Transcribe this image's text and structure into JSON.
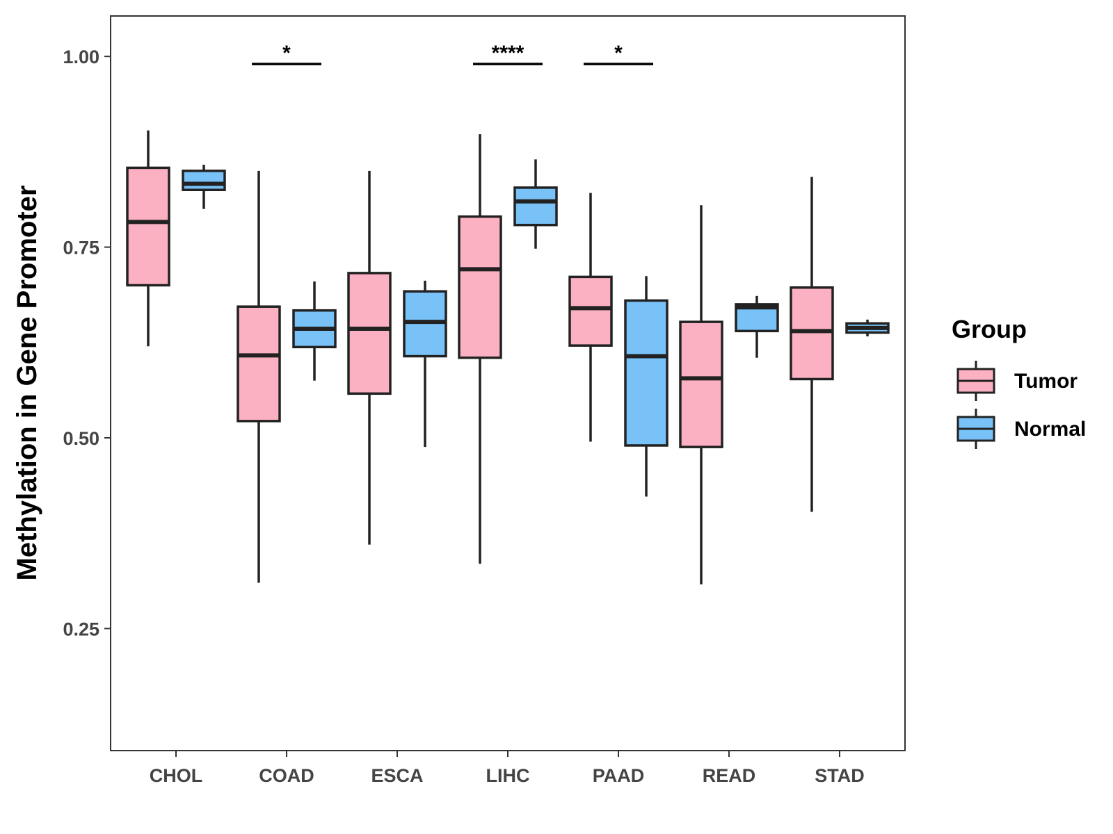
{
  "chart_data": {
    "type": "boxplot",
    "ylabel": "Methylation in Gene Promoter",
    "xlabel": "",
    "ylim": [
      0.09,
      1.053
    ],
    "yticks": [
      0.25,
      0.5,
      0.75,
      1.0
    ],
    "ytick_labels": [
      "0.25",
      "0.50",
      "0.75",
      "1.00"
    ],
    "categories": [
      "CHOL",
      "COAD",
      "ESCA",
      "LIHC",
      "PAAD",
      "READ",
      "STAD"
    ],
    "legend": {
      "title": "Group",
      "position": "right",
      "entries": [
        {
          "name": "Tumor",
          "color": "#FCB1C3"
        },
        {
          "name": "Normal",
          "color": "#78C2F7"
        }
      ]
    },
    "series": [
      {
        "name": "Tumor",
        "color": "#FCB1C3",
        "boxes": [
          {
            "category": "CHOL",
            "min": 0.62,
            "q1": 0.7,
            "median": 0.783,
            "q3": 0.854,
            "max": 0.903
          },
          {
            "category": "COAD",
            "min": 0.31,
            "q1": 0.522,
            "median": 0.608,
            "q3": 0.672,
            "max": 0.85
          },
          {
            "category": "ESCA",
            "min": 0.36,
            "q1": 0.558,
            "median": 0.643,
            "q3": 0.716,
            "max": 0.85
          },
          {
            "category": "LIHC",
            "min": 0.335,
            "q1": 0.605,
            "median": 0.721,
            "q3": 0.79,
            "max": 0.898
          },
          {
            "category": "PAAD",
            "min": 0.495,
            "q1": 0.621,
            "median": 0.67,
            "q3": 0.711,
            "max": 0.821
          },
          {
            "category": "READ",
            "min": 0.308,
            "q1": 0.488,
            "median": 0.578,
            "q3": 0.652,
            "max": 0.805
          },
          {
            "category": "STAD",
            "min": 0.403,
            "q1": 0.577,
            "median": 0.64,
            "q3": 0.697,
            "max": 0.842
          }
        ]
      },
      {
        "name": "Normal",
        "color": "#78C2F7",
        "boxes": [
          {
            "category": "CHOL",
            "min": 0.8,
            "q1": 0.825,
            "median": 0.833,
            "q3": 0.85,
            "max": 0.858
          },
          {
            "category": "COAD",
            "min": 0.575,
            "q1": 0.619,
            "median": 0.643,
            "q3": 0.667,
            "max": 0.705
          },
          {
            "category": "ESCA",
            "min": 0.488,
            "q1": 0.607,
            "median": 0.652,
            "q3": 0.692,
            "max": 0.706
          },
          {
            "category": "LIHC",
            "min": 0.748,
            "q1": 0.779,
            "median": 0.81,
            "q3": 0.828,
            "max": 0.865
          },
          {
            "category": "PAAD",
            "min": 0.423,
            "q1": 0.49,
            "median": 0.607,
            "q3": 0.68,
            "max": 0.712
          },
          {
            "category": "READ",
            "min": 0.605,
            "q1": 0.64,
            "median": 0.671,
            "q3": 0.675,
            "max": 0.686
          },
          {
            "category": "STAD",
            "min": 0.633,
            "q1": 0.638,
            "median": 0.644,
            "q3": 0.65,
            "max": 0.655
          }
        ]
      }
    ],
    "annotations": [
      {
        "category": "COAD",
        "label": "*",
        "y": 0.99
      },
      {
        "category": "LIHC",
        "label": "****",
        "y": 0.99
      },
      {
        "category": "PAAD",
        "label": "*",
        "y": 0.99
      }
    ]
  }
}
